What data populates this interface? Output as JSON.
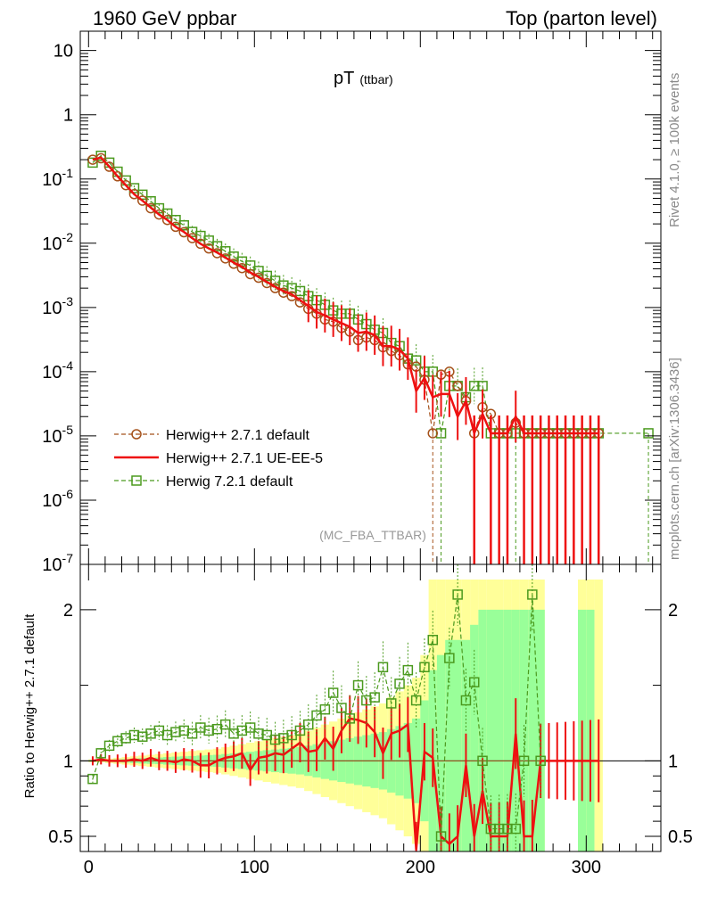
{
  "header": {
    "left_title": "1960 GeV ppbar",
    "right_title": "Top (parton level)"
  },
  "plot_title": {
    "main": "pT",
    "sub": "(ttbar)"
  },
  "analysis_id": "(MC_FBA_TTBAR)",
  "side_labels": {
    "rivet": "Rivet 4.1.0, ≥ 100k events",
    "source": "mcplots.cern.ch [arXiv:1306.3436]"
  },
  "ratio_ylabel": "Ratio to Herwig++ 2.7.1 default",
  "colors": {
    "herwig_default": "#a5521b",
    "herwig_ueee5": "#ee1111",
    "herwig7": "#4b9a1e",
    "band_yellow": "#ffff99",
    "band_green": "#99ff99"
  },
  "chart_data": {
    "type": "line",
    "main": {
      "yscale": "log",
      "xlim": [
        -5,
        345
      ],
      "ylim": [
        1e-07,
        20
      ],
      "y_tick_labels": [
        "10",
        "1",
        "10-1",
        "10-2",
        "10-3",
        "10-4",
        "10-5",
        "10-6",
        "10-7"
      ],
      "series": [
        {
          "name": "Herwig++ 2.7.1 default",
          "style": "dashed-circle",
          "x": [
            2.5,
            7.5,
            12.5,
            17.5,
            22.5,
            27.5,
            32.5,
            37.5,
            42.5,
            47.5,
            52.5,
            57.5,
            62.5,
            67.5,
            72.5,
            77.5,
            82.5,
            87.5,
            92.5,
            97.5,
            102.5,
            107.5,
            112.5,
            117.5,
            122.5,
            127.5,
            132.5,
            137.5,
            142.5,
            147.5,
            152.5,
            157.5,
            162.5,
            167.5,
            172.5,
            177.5,
            182.5,
            187.5,
            192.5,
            197.5,
            202.5,
            207.5,
            212.5,
            217.5,
            222.5,
            227.5,
            232.5,
            237.5,
            242.5,
            247.5,
            252.5,
            257.5,
            262.5,
            267.5,
            272.5,
            277.5,
            282.5,
            287.5,
            292.5,
            297.5,
            302.5,
            307.5
          ],
          "y": [
            0.2,
            0.21,
            0.155,
            0.11,
            0.08,
            0.058,
            0.046,
            0.035,
            0.028,
            0.023,
            0.018,
            0.0148,
            0.012,
            0.0098,
            0.0083,
            0.007,
            0.0058,
            0.0048,
            0.0041,
            0.0033,
            0.0029,
            0.0024,
            0.002,
            0.0017,
            0.0015,
            0.0012,
            0.00095,
            0.0008,
            0.00065,
            0.0006,
            0.00048,
            0.00042,
            0.00031,
            0.00034,
            0.00031,
            0.00024,
            0.00021,
            0.00018,
            0.00013,
            0.00012,
            7.5e-05,
            1.1e-05,
            9e-05,
            0.0001,
            6e-05,
            3.5e-05,
            1.1e-05,
            2.8e-05,
            2.2e-05,
            1.1e-05,
            1.1e-05,
            1.6e-05,
            1.1e-05,
            1.1e-05,
            1.1e-05,
            1.1e-05,
            1.1e-05,
            1.1e-05,
            1.1e-05,
            1.1e-05,
            1.1e-05,
            1.1e-05
          ]
        },
        {
          "name": "Herwig++ 2.7.1 UE-EE-5",
          "style": "solid",
          "x": [
            2.5,
            7.5,
            12.5,
            17.5,
            22.5,
            27.5,
            32.5,
            37.5,
            42.5,
            47.5,
            52.5,
            57.5,
            62.5,
            67.5,
            72.5,
            77.5,
            82.5,
            87.5,
            92.5,
            97.5,
            102.5,
            107.5,
            112.5,
            117.5,
            122.5,
            127.5,
            132.5,
            137.5,
            142.5,
            147.5,
            152.5,
            157.5,
            162.5,
            167.5,
            172.5,
            177.5,
            182.5,
            187.5,
            192.5,
            197.5,
            202.5,
            207.5,
            212.5,
            217.5,
            222.5,
            227.5,
            232.5,
            237.5,
            242.5,
            247.5,
            252.5,
            257.5,
            262.5,
            267.5,
            272.5,
            277.5,
            282.5,
            287.5,
            292.5,
            297.5,
            302.5,
            307.5
          ],
          "y": [
            0.2,
            0.215,
            0.156,
            0.11,
            0.08,
            0.058,
            0.046,
            0.036,
            0.028,
            0.023,
            0.018,
            0.015,
            0.012,
            0.0098,
            0.0083,
            0.0072,
            0.006,
            0.005,
            0.0043,
            0.0035,
            0.003,
            0.0025,
            0.0021,
            0.0018,
            0.0016,
            0.0013,
            0.00105,
            0.00085,
            0.00075,
            0.00065,
            0.00057,
            0.0005,
            0.0004,
            0.00042,
            0.00037,
            0.00025,
            0.00025,
            0.00022,
            0.00016,
            5e-05,
            8e-05,
            4e-05,
            4.5e-05,
            4.5e-05,
            2e-05,
            3.5e-05,
            1.1e-05,
            2.2e-05,
            1.1e-05,
            1.1e-05,
            1.1e-05,
            2e-05,
            1.1e-05,
            1.1e-05,
            1.1e-05,
            1.1e-05,
            1.1e-05,
            1.1e-05,
            1.1e-05,
            1.1e-05,
            1.1e-05,
            1.1e-05
          ]
        },
        {
          "name": "Herwig 7.2.1 default",
          "style": "dashed-square",
          "x": [
            2.5,
            7.5,
            12.5,
            17.5,
            22.5,
            27.5,
            32.5,
            37.5,
            42.5,
            47.5,
            52.5,
            57.5,
            62.5,
            67.5,
            72.5,
            77.5,
            82.5,
            87.5,
            92.5,
            97.5,
            102.5,
            107.5,
            112.5,
            117.5,
            122.5,
            127.5,
            132.5,
            137.5,
            142.5,
            147.5,
            152.5,
            157.5,
            162.5,
            167.5,
            172.5,
            177.5,
            182.5,
            187.5,
            192.5,
            197.5,
            202.5,
            207.5,
            212.5,
            217.5,
            222.5,
            227.5,
            232.5,
            237.5,
            242.5,
            247.5,
            252.5,
            257.5,
            262.5,
            267.5,
            272.5,
            277.5,
            282.5,
            287.5,
            292.5,
            297.5,
            302.5,
            307.5,
            337.5
          ],
          "y": [
            0.18,
            0.23,
            0.18,
            0.13,
            0.095,
            0.072,
            0.057,
            0.045,
            0.035,
            0.029,
            0.023,
            0.019,
            0.015,
            0.013,
            0.011,
            0.009,
            0.0075,
            0.0062,
            0.0052,
            0.0045,
            0.0037,
            0.0031,
            0.0026,
            0.0022,
            0.002,
            0.0018,
            0.0015,
            0.0013,
            0.0011,
            0.0009,
            0.0008,
            0.0008,
            0.00065,
            0.00055,
            0.00045,
            0.0004,
            0.00028,
            0.00025,
            0.00016,
            0.00015,
            0.0001,
            0.0001,
            1.1e-05,
            6e-05,
            6e-05,
            4e-05,
            6e-05,
            6e-05,
            1.1e-05,
            1.1e-05,
            1.1e-05,
            1.1e-05,
            1.1e-05,
            1.1e-05,
            1.1e-05,
            1.1e-05,
            1.1e-05,
            1.1e-05,
            1.1e-05,
            1.1e-05,
            1.1e-05,
            1.1e-05,
            1.1e-05
          ]
        }
      ]
    },
    "ratio": {
      "ylabel": "Ratio to Herwig++ 2.7.1 default",
      "ylim": [
        0.4,
        2.3
      ],
      "y_ticks": [
        0.5,
        1,
        2
      ],
      "y_tick_labels": [
        "0.5",
        "1",
        "2"
      ],
      "x_ticks": [
        0,
        100,
        200,
        300
      ],
      "x_tick_labels": [
        "0",
        "100",
        "200",
        "300"
      ],
      "band_x": [
        2.5,
        7.5,
        12.5,
        17.5,
        22.5,
        27.5,
        32.5,
        37.5,
        42.5,
        47.5,
        52.5,
        57.5,
        62.5,
        67.5,
        72.5,
        77.5,
        82.5,
        87.5,
        92.5,
        97.5,
        102.5,
        107.5,
        112.5,
        117.5,
        122.5,
        127.5,
        132.5,
        137.5,
        142.5,
        147.5,
        152.5,
        157.5,
        162.5,
        167.5,
        172.5,
        177.5,
        182.5,
        187.5,
        192.5,
        197.5,
        202.5,
        207.5,
        212.5,
        217.5,
        222.5,
        227.5,
        232.5,
        237.5,
        242.5,
        247.5,
        252.5,
        257.5,
        262.5,
        267.5,
        272.5,
        277.5,
        282.5,
        287.5,
        292.5,
        297.5,
        302.5,
        307.5
      ],
      "band_yellow_half": [
        0.01,
        0.01,
        0.015,
        0.02,
        0.025,
        0.03,
        0.035,
        0.04,
        0.045,
        0.05,
        0.055,
        0.06,
        0.065,
        0.07,
        0.075,
        0.08,
        0.09,
        0.1,
        0.11,
        0.12,
        0.13,
        0.14,
        0.15,
        0.16,
        0.17,
        0.18,
        0.2,
        0.22,
        0.24,
        0.26,
        0.28,
        0.3,
        0.32,
        0.34,
        0.36,
        0.38,
        0.42,
        0.46,
        0.5,
        0.55,
        0.7,
        1.2,
        1.2,
        1.2,
        1.2,
        1.2,
        1.2,
        1.2,
        1.2,
        1.2,
        1.2,
        1.2,
        1.2,
        1.2,
        1.2,
        0,
        0,
        0,
        0,
        1.2,
        1.2,
        1.2
      ],
      "band_green_half": [
        0.005,
        0.005,
        0.008,
        0.01,
        0.012,
        0.015,
        0.018,
        0.02,
        0.022,
        0.025,
        0.028,
        0.03,
        0.032,
        0.035,
        0.038,
        0.04,
        0.045,
        0.05,
        0.055,
        0.06,
        0.065,
        0.07,
        0.075,
        0.08,
        0.085,
        0.09,
        0.1,
        0.11,
        0.12,
        0.13,
        0.14,
        0.15,
        0.16,
        0.17,
        0.18,
        0.19,
        0.21,
        0.23,
        0.25,
        0.28,
        0.4,
        0.6,
        0.7,
        0.8,
        0.8,
        0.8,
        0.9,
        1.0,
        1.0,
        1.0,
        1.0,
        1.0,
        1.0,
        1.0,
        1.0,
        0,
        0,
        0,
        0,
        1.0,
        1.0,
        0
      ],
      "series": [
        {
          "name": "Herwig++ 2.7.1 default",
          "x": [
            2.5,
            307.5
          ],
          "y": [
            1,
            1
          ]
        },
        {
          "name": "Herwig++ 2.7.1 UE-EE-5",
          "x": [
            2.5,
            7.5,
            12.5,
            17.5,
            22.5,
            27.5,
            32.5,
            37.5,
            42.5,
            47.5,
            52.5,
            57.5,
            62.5,
            67.5,
            72.5,
            77.5,
            82.5,
            87.5,
            92.5,
            97.5,
            102.5,
            107.5,
            112.5,
            117.5,
            122.5,
            127.5,
            132.5,
            137.5,
            142.5,
            147.5,
            152.5,
            157.5,
            162.5,
            167.5,
            172.5,
            177.5,
            182.5,
            187.5,
            192.5,
            197.5,
            202.5,
            207.5,
            212.5,
            217.5,
            222.5,
            227.5,
            232.5,
            237.5,
            242.5,
            247.5,
            252.5,
            257.5,
            262.5,
            267.5,
            272.5,
            277.5,
            282.5,
            287.5,
            292.5,
            297.5,
            302.5,
            307.5
          ],
          "y": [
            1.0,
            1.01,
            1.0,
            1.0,
            1.0,
            1.01,
            1.0,
            1.02,
            1.0,
            1.0,
            0.99,
            1.01,
            1.0,
            0.97,
            0.97,
            1.0,
            1.02,
            1.03,
            1.05,
            0.94,
            1.02,
            1.03,
            1.05,
            1.04,
            1.08,
            1.12,
            1.06,
            1.07,
            1.15,
            1.08,
            1.2,
            1.28,
            1.27,
            1.25,
            1.19,
            1.05,
            1.18,
            1.2,
            1.24,
            0.41,
            1.06,
            1.02,
            0.5,
            0.45,
            0.5,
            0.97,
            0.5,
            0.8,
            0.5,
            0.5,
            0.5,
            1.18,
            0.5,
            0.5,
            1.0,
            1.0,
            1.0,
            1.0,
            1.0,
            1.0,
            1.0,
            1.0
          ]
        },
        {
          "name": "Herwig 7.2.1 default",
          "x": [
            2.5,
            7.5,
            12.5,
            17.5,
            22.5,
            27.5,
            32.5,
            37.5,
            42.5,
            47.5,
            52.5,
            57.5,
            62.5,
            67.5,
            72.5,
            77.5,
            82.5,
            87.5,
            92.5,
            97.5,
            102.5,
            107.5,
            112.5,
            117.5,
            122.5,
            127.5,
            132.5,
            137.5,
            142.5,
            147.5,
            152.5,
            157.5,
            162.5,
            167.5,
            172.5,
            177.5,
            182.5,
            187.5,
            192.5,
            197.5,
            202.5,
            207.5,
            212.5,
            217.5,
            222.5,
            227.5,
            232.5,
            237.5,
            242.5,
            247.5,
            252.5,
            257.5,
            262.5,
            267.5,
            272.5
          ],
          "y": [
            0.88,
            1.05,
            1.1,
            1.13,
            1.15,
            1.17,
            1.16,
            1.18,
            1.2,
            1.17,
            1.19,
            1.2,
            1.18,
            1.22,
            1.2,
            1.21,
            1.24,
            1.18,
            1.2,
            1.22,
            1.18,
            1.17,
            1.14,
            1.15,
            1.17,
            1.2,
            1.24,
            1.3,
            1.34,
            1.45,
            1.35,
            1.28,
            1.5,
            1.4,
            1.42,
            1.62,
            1.38,
            1.51,
            1.6,
            1.4,
            1.62,
            1.8,
            0.5,
            1.68,
            2.1,
            1.4,
            1.52,
            1.0,
            0.55,
            0.55,
            0.55,
            0.55,
            1.0,
            2.1,
            1.0
          ]
        }
      ]
    }
  }
}
